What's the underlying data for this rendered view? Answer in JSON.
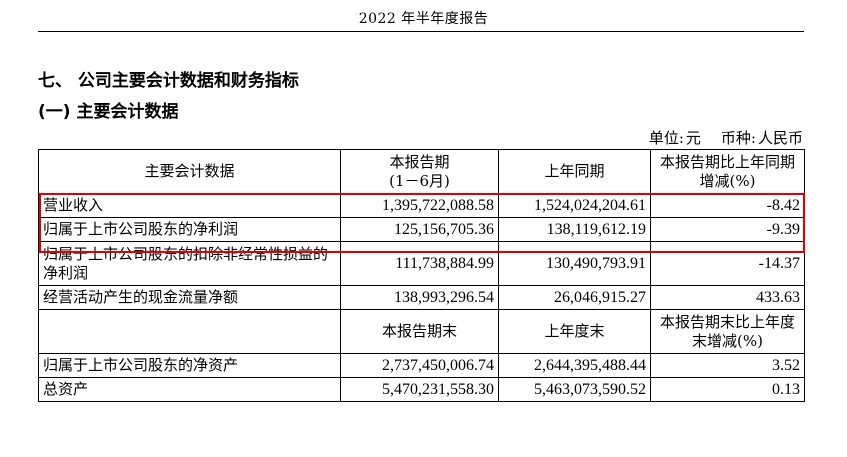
{
  "header": {
    "title": "2022 年半年度报告"
  },
  "section": {
    "title": "七、  公司主要会计数据和财务指标",
    "subtitle": "(一) 主要会计数据"
  },
  "unit": {
    "unit_label": "单位:",
    "unit_value": "元",
    "currency_label": "币种:",
    "currency_value": "人民币"
  },
  "table": {
    "headers": {
      "name": "主要会计数据",
      "current": "本报告期\n(1－6月)",
      "previous": "上年同期",
      "change": "本报告期比上年同期增减(%)"
    },
    "rows": [
      {
        "name": "营业收入",
        "current": "1,395,722,088.58",
        "previous": "1,524,024,204.61",
        "change": "-8.42"
      },
      {
        "name": "归属于上市公司股东的净利润",
        "current": "125,156,705.36",
        "previous": "138,119,612.19",
        "change": "-9.39"
      },
      {
        "name": "归属于上市公司股东的扣除非经常性损益的净利润",
        "current": "111,738,884.99",
        "previous": "130,490,793.91",
        "change": "-14.37"
      },
      {
        "name": "经营活动产生的现金流量净额",
        "current": "138,993,296.54",
        "previous": "26,046,915.27",
        "change": "433.63"
      }
    ],
    "headers2": {
      "name": "",
      "current": "本报告期末",
      "previous": "上年度末",
      "change": "本报告期末比上年度末增减(%)"
    },
    "rows2": [
      {
        "name": "归属于上市公司股东的净资产",
        "current": "2,737,450,006.74",
        "previous": "2,644,395,488.44",
        "change": "3.52"
      },
      {
        "name": "总资产",
        "current": "5,470,231,558.30",
        "previous": "5,463,073,590.52",
        "change": "0.13"
      }
    ]
  },
  "highlight": {
    "color": "#e00000"
  }
}
